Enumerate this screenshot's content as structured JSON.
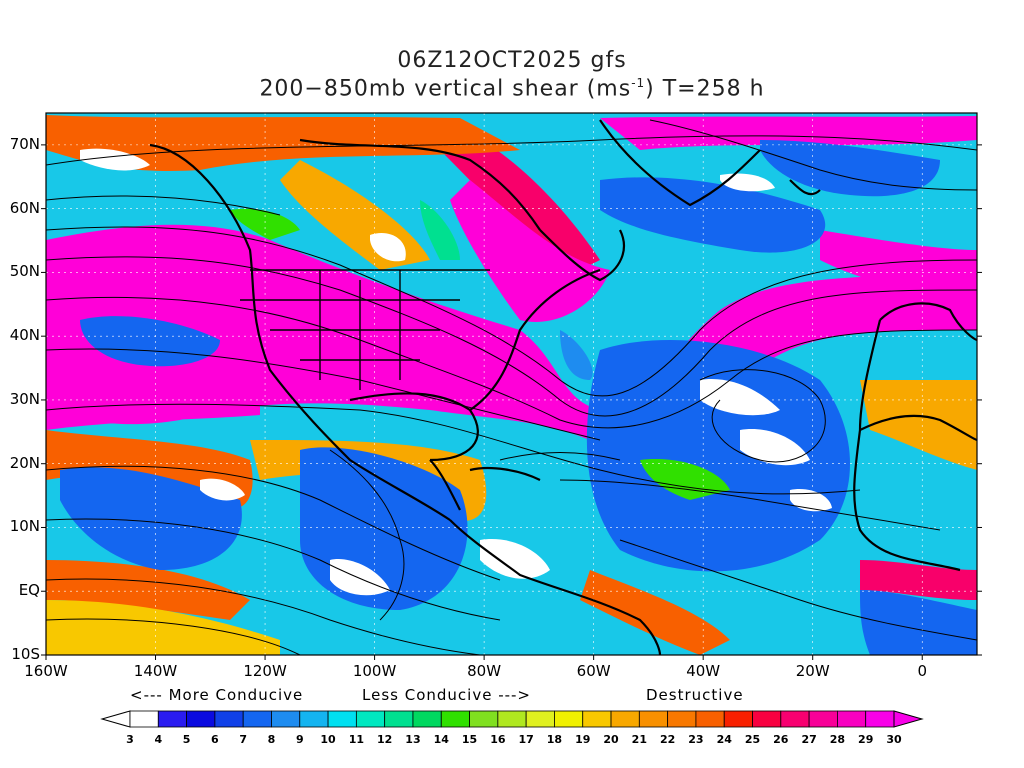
{
  "title_line1": "06Z12OCT2025 gfs",
  "title_line2_prefix": "200−850mb vertical shear (ms",
  "title_line2_sup": "-1",
  "title_line2_suffix": ") T=258 h",
  "lat_labels": [
    "70N",
    "60N",
    "50N",
    "40N",
    "30N",
    "20N",
    "10N",
    "EQ",
    "10S"
  ],
  "lat_values": [
    70,
    60,
    50,
    40,
    30,
    20,
    10,
    0,
    -10
  ],
  "lon_labels": [
    "160W",
    "140W",
    "120W",
    "100W",
    "80W",
    "60W",
    "40W",
    "20W",
    "0"
  ],
  "lon_values": [
    -160,
    -140,
    -120,
    -100,
    -80,
    -60,
    -40,
    -20,
    0
  ],
  "map_extent": {
    "lon_min": -160,
    "lon_max": 10,
    "lat_min": -10,
    "lat_max": 75
  },
  "legend_notes": {
    "more": "<--- More Conducive",
    "less": "Less Conducive --->",
    "destructive": "Destructive"
  },
  "colorbar": {
    "labels": [
      "3",
      "4",
      "5",
      "6",
      "7",
      "8",
      "9",
      "10",
      "11",
      "12",
      "13",
      "14",
      "15",
      "16",
      "17",
      "18",
      "19",
      "20",
      "21",
      "22",
      "23",
      "24",
      "25",
      "26",
      "27",
      "28",
      "29",
      "30"
    ],
    "colors": [
      "#ffffff",
      "#2a1cf0",
      "#0a0ae0",
      "#1040e8",
      "#1466f0",
      "#1e8cf0",
      "#14b4f0",
      "#00e0f0",
      "#00e8c0",
      "#00e090",
      "#00d860",
      "#30e000",
      "#80e020",
      "#b0e820",
      "#e0f020",
      "#f0f000",
      "#f8c800",
      "#f8a800",
      "#f89000",
      "#f87800",
      "#f86000",
      "#f82000",
      "#f80040",
      "#f80070",
      "#f80098",
      "#f800c0",
      "#f800e8"
    ],
    "units": "ms-1"
  }
}
